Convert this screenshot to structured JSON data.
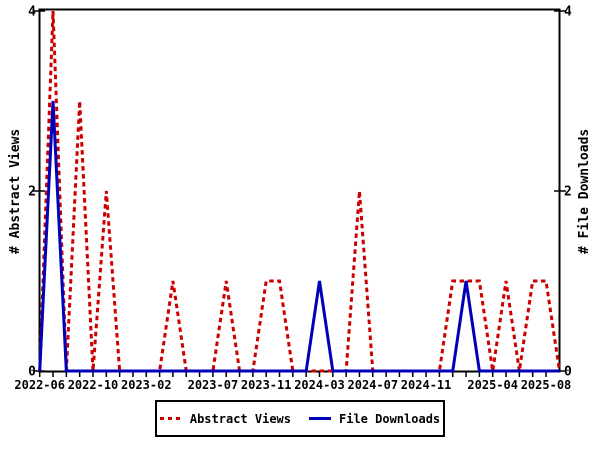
{
  "chart_data": {
    "type": "line",
    "title": "",
    "ylabel_left": "# Abstract Views",
    "ylabel_right": "# File Downloads",
    "ylim": [
      0,
      4
    ],
    "yticks": [
      0,
      2,
      4
    ],
    "grid": false,
    "legend_position": "bottom",
    "x": [
      "2022-06",
      "2022-07",
      "2022-08",
      "2022-09",
      "2022-10",
      "2022-11",
      "2022-12",
      "2023-01",
      "2023-02",
      "2023-03",
      "2023-04",
      "2023-05",
      "2023-06",
      "2023-07",
      "2023-08",
      "2023-09",
      "2023-10",
      "2023-11",
      "2023-12",
      "2024-01",
      "2024-02",
      "2024-03",
      "2024-04",
      "2024-05",
      "2024-06",
      "2024-07",
      "2024-08",
      "2024-09",
      "2024-10",
      "2024-11",
      "2024-12",
      "2025-01",
      "2025-02",
      "2025-03",
      "2025-04",
      "2025-05",
      "2025-06",
      "2025-07",
      "2025-08"
    ],
    "x_tick_labels": [
      {
        "label": "2022-06",
        "i": 0
      },
      {
        "label": "2022-10",
        "i": 4
      },
      {
        "label": "2023-02",
        "i": 8
      },
      {
        "label": "2023-07",
        "i": 13
      },
      {
        "label": "2023-11",
        "i": 17
      },
      {
        "label": "2024-03",
        "i": 21
      },
      {
        "label": "2024-07",
        "i": 25
      },
      {
        "label": "2024-11",
        "i": 29
      },
      {
        "label": "2025-04",
        "i": 34
      },
      {
        "label": "2025-08",
        "i": 38
      }
    ],
    "series": [
      {
        "name": "Abstract Views",
        "color": "#cc0000",
        "style": "dashed",
        "values": [
          0,
          4,
          0,
          3,
          0,
          2,
          0,
          0,
          0,
          0,
          1,
          0,
          0,
          0,
          1,
          0,
          0,
          1,
          1,
          0,
          0,
          0,
          0,
          0,
          2,
          0,
          0,
          0,
          0,
          0,
          0,
          1,
          1,
          1,
          0,
          1,
          0,
          1,
          1
        ]
      },
      {
        "name": "File Downloads",
        "color": "#0000bb",
        "style": "solid",
        "values": [
          0,
          3,
          0,
          0,
          0,
          0,
          0,
          0,
          0,
          0,
          0,
          0,
          0,
          0,
          0,
          0,
          0,
          0,
          0,
          0,
          0,
          1,
          0,
          0,
          0,
          0,
          0,
          0,
          0,
          0,
          0,
          0,
          1,
          0,
          0,
          0,
          0,
          0,
          0
        ]
      }
    ]
  },
  "colors": {
    "axis": "#000000",
    "text": "#000000",
    "background": "#ffffff"
  }
}
